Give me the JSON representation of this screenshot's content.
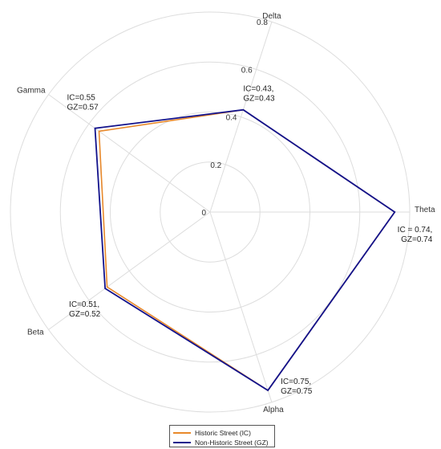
{
  "chart_data": {
    "type": "radar",
    "categories": [
      "Theta",
      "Delta",
      "Gamma",
      "Beta",
      "Alpha"
    ],
    "rlim": [
      0,
      0.8
    ],
    "rticks": [
      "0",
      "0.2",
      "0.4",
      "0.6",
      "0.8"
    ],
    "grid": true,
    "legend_placement": "bottom",
    "series": [
      {
        "name": "Historic Street (IC)",
        "values": [
          0.74,
          0.43,
          0.55,
          0.51,
          0.75
        ],
        "color": "#e8892b"
      },
      {
        "name": "Non-Historic Street (GZ)",
        "values": [
          0.74,
          0.43,
          0.57,
          0.52,
          0.75
        ],
        "color": "#12128c"
      }
    ],
    "annotations": [
      {
        "line1": "IC = 0.74,",
        "line2": "GZ=0.74"
      },
      {
        "line1": "IC=0.43,",
        "line2": "GZ=0.43"
      },
      {
        "line1": "IC=0.55",
        "line2": "GZ=0.57"
      },
      {
        "line1": "IC=0.51,",
        "line2": "GZ=0.52"
      },
      {
        "line1": "IC=0.75,",
        "line2": "GZ=0.75"
      }
    ]
  }
}
